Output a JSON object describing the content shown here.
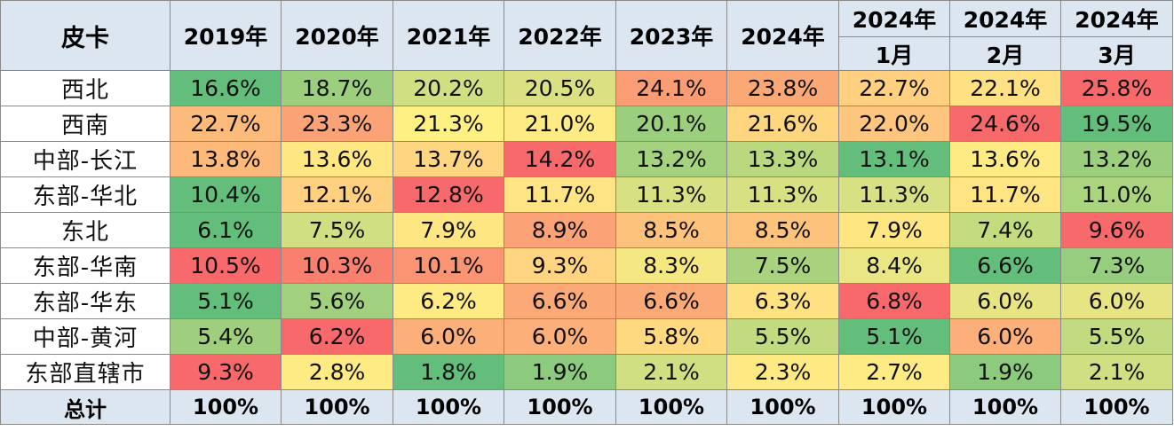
{
  "table": {
    "corner_label": "皮卡",
    "period_columns": [
      {
        "top": "2019年",
        "bottom": ""
      },
      {
        "top": "2020年",
        "bottom": ""
      },
      {
        "top": "2021年",
        "bottom": ""
      },
      {
        "top": "2022年",
        "bottom": ""
      },
      {
        "top": "2023年",
        "bottom": ""
      },
      {
        "top": "2024年",
        "bottom": ""
      },
      {
        "top": "2024年",
        "bottom": "1月"
      },
      {
        "top": "2024年",
        "bottom": "2月"
      },
      {
        "top": "2024年",
        "bottom": "3月"
      }
    ],
    "rows": [
      {
        "label": "西北",
        "values": [
          "16.6%",
          "18.7%",
          "20.2%",
          "20.5%",
          "24.1%",
          "23.8%",
          "22.7%",
          "22.1%",
          "25.8%"
        ],
        "colors": [
          "#63be7b",
          "#9bcf7d",
          "#d0df81",
          "#dbe182",
          "#fa9d75",
          "#fba877",
          "#fed07f",
          "#fee182",
          "#f8696b"
        ]
      },
      {
        "label": "西南",
        "values": [
          "22.7%",
          "23.3%",
          "21.3%",
          "21.0%",
          "20.1%",
          "21.6%",
          "22.0%",
          "24.6%",
          "19.5%"
        ],
        "colors": [
          "#fdbb7b",
          "#fba377",
          "#fef083",
          "#ffeb84",
          "#9bcf7d",
          "#fed680",
          "#fdc57d",
          "#f8696b",
          "#63be7b"
        ]
      },
      {
        "label": "中部-长江",
        "values": [
          "13.8%",
          "13.6%",
          "13.7%",
          "14.2%",
          "13.2%",
          "13.3%",
          "13.1%",
          "13.6%",
          "13.2%"
        ],
        "colors": [
          "#fdb97a",
          "#fee683",
          "#fed580",
          "#f8696b",
          "#a5d27e",
          "#bad97f",
          "#63be7b",
          "#ffeb84",
          "#9bcf7d"
        ]
      },
      {
        "label": "东部-华北",
        "values": [
          "10.4%",
          "12.1%",
          "12.8%",
          "11.7%",
          "11.3%",
          "11.3%",
          "11.3%",
          "11.7%",
          "11.0%"
        ],
        "colors": [
          "#63be7b",
          "#fed07f",
          "#f8696b",
          "#fee483",
          "#d7e082",
          "#d7e082",
          "#d7e082",
          "#fee483",
          "#abd47e"
        ]
      },
      {
        "label": "东北",
        "values": [
          "6.1%",
          "7.5%",
          "7.9%",
          "8.9%",
          "8.5%",
          "8.5%",
          "7.9%",
          "7.4%",
          "9.6%"
        ],
        "colors": [
          "#63be7b",
          "#cfdf81",
          "#fee683",
          "#fba377",
          "#fdc27c",
          "#fdc27c",
          "#fee683",
          "#c4dc80",
          "#f8696b"
        ]
      },
      {
        "label": "东部-华南",
        "values": [
          "10.5%",
          "10.3%",
          "10.1%",
          "9.3%",
          "8.3%",
          "7.5%",
          "8.4%",
          "6.6%",
          "7.3%"
        ],
        "colors": [
          "#f8696b",
          "#f97f6f",
          "#fa9473",
          "#fed480",
          "#f5e883",
          "#a8d27e",
          "#eae683",
          "#63be7b",
          "#97cd7e"
        ]
      },
      {
        "label": "东部-华东",
        "values": [
          "5.1%",
          "5.6%",
          "6.2%",
          "6.6%",
          "6.6%",
          "6.3%",
          "6.8%",
          "6.0%",
          "6.0%"
        ],
        "colors": [
          "#63be7b",
          "#a1d07e",
          "#ffeb84",
          "#fba977",
          "#fba977",
          "#fee282",
          "#f8696b",
          "#e7e483",
          "#e7e483"
        ]
      },
      {
        "label": "中部-黄河",
        "values": [
          "5.4%",
          "6.2%",
          "6.0%",
          "6.0%",
          "5.8%",
          "5.5%",
          "5.1%",
          "6.0%",
          "5.5%"
        ],
        "colors": [
          "#9fcf7d",
          "#f8696b",
          "#fcaf78",
          "#fcaf78",
          "#fed980",
          "#c2db80",
          "#63be7b",
          "#fcaf78",
          "#c2db80"
        ]
      },
      {
        "label": "东部直辖市",
        "values": [
          "9.3%",
          "2.8%",
          "1.8%",
          "1.9%",
          "2.1%",
          "2.3%",
          "2.7%",
          "1.9%",
          "2.1%"
        ],
        "colors": [
          "#f8696b",
          "#feeb84",
          "#63be7b",
          "#8ccb7d",
          "#d0df81",
          "#fee983",
          "#ffeb84",
          "#8ccb7d",
          "#d0df81"
        ]
      }
    ],
    "total": {
      "label": "总计",
      "values": [
        "100%",
        "100%",
        "100%",
        "100%",
        "100%",
        "100%",
        "100%",
        "100%",
        "100%"
      ]
    }
  }
}
